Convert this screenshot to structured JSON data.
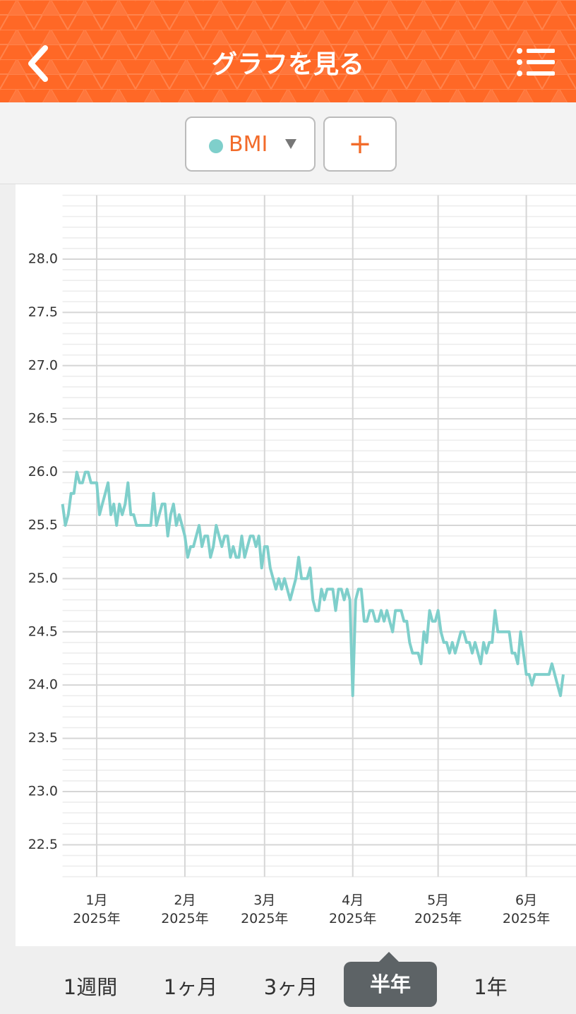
{
  "header": {
    "title": "グラフを見る"
  },
  "selector": {
    "add": "+"
  },
  "chart_data": {
    "type": "line",
    "categories": [
      null,
      null,
      null,
      null,
      null,
      null,
      null,
      null,
      null,
      null,
      null,
      null,
      "1月\n2025年",
      null,
      null,
      null,
      null,
      null,
      null,
      null,
      null,
      null,
      null,
      null,
      null,
      null,
      null,
      null,
      null,
      null,
      null,
      null,
      null,
      null,
      null,
      null,
      null,
      null,
      null,
      null,
      null,
      null,
      null,
      "2月\n2025年",
      null,
      null,
      null,
      null,
      null,
      null,
      null,
      null,
      null,
      null,
      null,
      null,
      null,
      null,
      null,
      null,
      null,
      null,
      null,
      null,
      null,
      null,
      null,
      null,
      null,
      null,
      null,
      "3月\n2025年",
      null,
      null,
      null,
      null,
      null,
      null,
      null,
      null,
      null,
      null,
      null,
      null,
      null,
      null,
      null,
      null,
      null,
      null,
      null,
      null,
      null,
      null,
      null,
      null,
      null,
      null,
      null,
      null,
      null,
      null,
      "4月\n2025年",
      null,
      null,
      null,
      null,
      null,
      null,
      null,
      null,
      null,
      null,
      null,
      null,
      null,
      null,
      null,
      null,
      null,
      null,
      null,
      null,
      null,
      null,
      null,
      null,
      null,
      null,
      null,
      null,
      null,
      "5月\n2025年",
      null,
      null,
      null,
      null,
      null,
      null,
      null,
      null,
      null,
      null,
      null,
      null,
      null,
      null,
      null,
      null,
      null,
      null,
      null,
      null,
      null,
      null,
      null,
      null,
      null,
      null,
      null,
      null,
      null,
      null,
      "6月\n2025年",
      null,
      null,
      null,
      null,
      null,
      null,
      null,
      null,
      null,
      null,
      null,
      null,
      null
    ],
    "series": [
      {
        "name": "BMI",
        "color": "#7fcfcb",
        "values": [
          25.7,
          25.5,
          25.6,
          25.8,
          25.8,
          26.0,
          25.9,
          25.9,
          26.0,
          26.0,
          25.9,
          25.9,
          25.9,
          25.6,
          25.7,
          25.8,
          25.9,
          25.6,
          25.7,
          25.5,
          25.7,
          25.6,
          25.7,
          25.9,
          25.6,
          25.6,
          25.5,
          25.5,
          25.5,
          25.5,
          25.5,
          25.5,
          25.8,
          25.5,
          25.6,
          25.7,
          25.7,
          25.4,
          25.6,
          25.7,
          25.5,
          25.6,
          25.5,
          25.4,
          25.2,
          25.3,
          25.3,
          25.4,
          25.5,
          25.3,
          25.4,
          25.4,
          25.2,
          25.3,
          25.5,
          25.4,
          25.3,
          25.4,
          25.4,
          25.2,
          25.3,
          25.2,
          25.2,
          25.4,
          25.2,
          25.3,
          25.4,
          25.4,
          25.3,
          25.4,
          25.1,
          25.3,
          25.3,
          25.1,
          25.0,
          24.9,
          25.0,
          24.9,
          25.0,
          24.9,
          24.8,
          24.9,
          25.0,
          25.2,
          25.0,
          25.0,
          25.0,
          25.1,
          24.8,
          24.7,
          24.7,
          24.9,
          24.8,
          24.9,
          24.9,
          24.9,
          24.7,
          24.9,
          24.9,
          24.8,
          24.9,
          24.8,
          23.9,
          24.8,
          24.9,
          24.9,
          24.6,
          24.6,
          24.7,
          24.7,
          24.6,
          24.6,
          24.7,
          24.6,
          24.7,
          24.6,
          24.5,
          24.7,
          24.7,
          24.7,
          24.6,
          24.6,
          24.4,
          24.3,
          24.3,
          24.3,
          24.2,
          24.5,
          24.4,
          24.7,
          24.6,
          24.6,
          24.7,
          24.5,
          24.4,
          24.4,
          24.3,
          24.4,
          24.3,
          24.4,
          24.5,
          24.5,
          24.4,
          24.4,
          24.3,
          24.4,
          24.3,
          24.2,
          24.4,
          24.3,
          24.4,
          24.4,
          24.7,
          24.5,
          24.5,
          24.5,
          24.5,
          24.5,
          24.3,
          24.3,
          24.2,
          24.5,
          24.3,
          24.1,
          24.1,
          24.0,
          24.1,
          24.1,
          24.1,
          24.1,
          24.1,
          24.1,
          24.2,
          24.1,
          24.0,
          23.9,
          24.1
        ]
      }
    ],
    "ylim": [
      22.2,
      28.6
    ],
    "yticks": [
      {
        "value": 22.5,
        "label": "22.5"
      },
      {
        "value": 23,
        "label": "23.0"
      },
      {
        "value": 23.5,
        "label": "23.5"
      },
      {
        "value": 24,
        "label": "24.0"
      },
      {
        "value": 24.5,
        "label": "24.5"
      },
      {
        "value": 25,
        "label": "25.0"
      },
      {
        "value": 25.5,
        "label": "25.5"
      },
      {
        "value": 26,
        "label": "26.0"
      },
      {
        "value": 26.5,
        "label": "26.5"
      },
      {
        "value": 27,
        "label": "27.0"
      },
      {
        "value": 27.5,
        "label": "27.5"
      },
      {
        "value": 28,
        "label": "28.0"
      }
    ],
    "grid": true,
    "minor_grid_step": 0.1
  },
  "tabs": [
    "1週間",
    "1ヶ月",
    "3ヶ月",
    "半年",
    "1年"
  ],
  "selected_tab": 3
}
